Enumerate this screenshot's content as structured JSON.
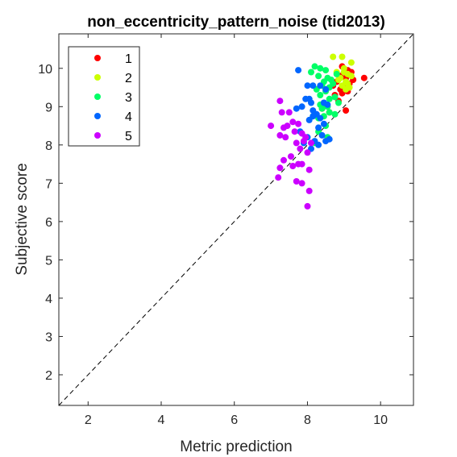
{
  "chart_data": {
    "type": "scatter",
    "title": "non_eccentricity_pattern_noise (tid2013)",
    "xlabel": "Metric prediction",
    "ylabel": "Subjective score",
    "xlim": [
      1.2,
      10.9
    ],
    "ylim": [
      1.2,
      10.9
    ],
    "xticks": [
      2,
      4,
      6,
      8,
      10
    ],
    "yticks": [
      2,
      3,
      4,
      5,
      6,
      7,
      8,
      9,
      10
    ],
    "grid": false,
    "legend_position": "top-left",
    "reference_line": {
      "style": "dashed",
      "color": "#000000",
      "points": [
        [
          1.2,
          1.2
        ],
        [
          10.9,
          10.9
        ]
      ]
    },
    "series": [
      {
        "name": "1",
        "color": "#ff0000",
        "points": [
          [
            8.95,
            10.05
          ],
          [
            9.1,
            9.95
          ],
          [
            9.2,
            9.9
          ],
          [
            8.9,
            9.8
          ],
          [
            9.05,
            9.75
          ],
          [
            8.8,
            9.65
          ],
          [
            9.55,
            9.75
          ],
          [
            9.0,
            9.5
          ],
          [
            9.15,
            9.6
          ],
          [
            8.9,
            9.45
          ],
          [
            8.75,
            9.3
          ],
          [
            8.85,
            9.15
          ],
          [
            9.05,
            8.9
          ],
          [
            8.5,
            9.05
          ],
          [
            8.4,
            8.95
          ],
          [
            8.6,
            8.85
          ],
          [
            9.25,
            9.7
          ],
          [
            8.95,
            9.35
          ],
          [
            9.1,
            9.4
          ],
          [
            8.7,
            9.55
          ]
        ]
      },
      {
        "name": "2",
        "color": "#ccff00",
        "points": [
          [
            8.7,
            10.3
          ],
          [
            8.95,
            10.3
          ],
          [
            9.2,
            10.15
          ],
          [
            9.0,
            10.0
          ],
          [
            9.1,
            9.85
          ],
          [
            8.85,
            9.7
          ],
          [
            9.05,
            9.65
          ],
          [
            8.95,
            9.55
          ],
          [
            9.15,
            9.5
          ],
          [
            9.0,
            9.9
          ],
          [
            8.9,
            9.75
          ],
          [
            9.1,
            9.6
          ],
          [
            8.8,
            9.9
          ],
          [
            9.2,
            9.8
          ],
          [
            9.05,
            9.45
          ]
        ]
      },
      {
        "name": "3",
        "color": "#00ff66",
        "points": [
          [
            8.2,
            10.05
          ],
          [
            8.35,
            10.0
          ],
          [
            8.5,
            9.95
          ],
          [
            8.1,
            9.9
          ],
          [
            8.3,
            9.8
          ],
          [
            8.55,
            9.75
          ],
          [
            8.65,
            9.7
          ],
          [
            8.45,
            9.65
          ],
          [
            8.4,
            9.55
          ],
          [
            8.6,
            9.5
          ],
          [
            8.25,
            9.45
          ],
          [
            8.5,
            9.4
          ],
          [
            8.75,
            9.25
          ],
          [
            8.35,
            9.3
          ],
          [
            8.6,
            9.2
          ],
          [
            8.45,
            9.1
          ],
          [
            8.85,
            9.1
          ],
          [
            8.55,
            9.0
          ],
          [
            8.4,
            8.95
          ],
          [
            8.6,
            8.85
          ],
          [
            8.75,
            8.8
          ],
          [
            8.15,
            8.75
          ],
          [
            8.3,
            8.7
          ],
          [
            8.5,
            8.5
          ],
          [
            8.3,
            8.35
          ],
          [
            8.55,
            8.2
          ],
          [
            8.2,
            8.05
          ],
          [
            8.7,
            9.6
          ],
          [
            8.8,
            9.85
          ],
          [
            8.45,
            8.75
          ],
          [
            8.35,
            9.05
          ]
        ]
      },
      {
        "name": "4",
        "color": "#0066ff",
        "points": [
          [
            7.75,
            9.95
          ],
          [
            8.0,
            9.55
          ],
          [
            8.15,
            9.55
          ],
          [
            8.35,
            9.55
          ],
          [
            8.5,
            9.45
          ],
          [
            7.95,
            9.2
          ],
          [
            8.05,
            9.2
          ],
          [
            8.1,
            9.1
          ],
          [
            7.85,
            9.0
          ],
          [
            8.45,
            9.1
          ],
          [
            8.55,
            9.05
          ],
          [
            7.7,
            8.95
          ],
          [
            8.15,
            8.9
          ],
          [
            8.25,
            8.8
          ],
          [
            8.35,
            8.7
          ],
          [
            8.05,
            8.65
          ],
          [
            8.45,
            8.55
          ],
          [
            8.3,
            8.45
          ],
          [
            7.8,
            8.35
          ],
          [
            8.0,
            8.2
          ],
          [
            8.4,
            8.25
          ],
          [
            8.6,
            8.15
          ],
          [
            8.2,
            8.1
          ],
          [
            8.1,
            7.9
          ],
          [
            8.3,
            8.0
          ],
          [
            7.9,
            8.05
          ],
          [
            8.5,
            8.1
          ],
          [
            8.15,
            8.75
          ]
        ]
      },
      {
        "name": "5",
        "color": "#cc00ff",
        "points": [
          [
            7.25,
            9.15
          ],
          [
            7.3,
            8.85
          ],
          [
            7.5,
            8.85
          ],
          [
            7.6,
            8.6
          ],
          [
            7.0,
            8.5
          ],
          [
            7.35,
            8.45
          ],
          [
            7.75,
            8.55
          ],
          [
            7.65,
            8.35
          ],
          [
            7.85,
            8.3
          ],
          [
            7.25,
            8.25
          ],
          [
            7.4,
            8.2
          ],
          [
            7.95,
            8.2
          ],
          [
            7.7,
            8.05
          ],
          [
            7.8,
            7.9
          ],
          [
            8.0,
            7.8
          ],
          [
            7.55,
            7.7
          ],
          [
            7.75,
            7.5
          ],
          [
            7.85,
            7.5
          ],
          [
            8.05,
            7.35
          ],
          [
            7.35,
            7.6
          ],
          [
            7.25,
            7.4
          ],
          [
            7.2,
            7.15
          ],
          [
            7.7,
            7.05
          ],
          [
            7.85,
            7.0
          ],
          [
            8.05,
            6.8
          ],
          [
            8.0,
            6.4
          ],
          [
            7.6,
            7.45
          ],
          [
            7.9,
            8.1
          ],
          [
            8.1,
            8.05
          ],
          [
            7.45,
            8.5
          ]
        ]
      }
    ]
  }
}
